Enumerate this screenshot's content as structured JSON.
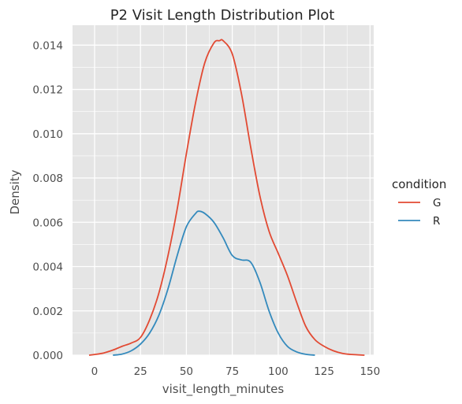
{
  "chart_data": {
    "type": "line",
    "title": "P2 Visit Length Distribution Plot",
    "xlabel": "visit_length_minutes",
    "ylabel": "Density",
    "xlim": [
      -12,
      152
    ],
    "ylim": [
      0,
      0.0149
    ],
    "xticks": [
      0,
      25,
      50,
      75,
      100,
      125,
      150
    ],
    "xtick_labels": [
      "0",
      "25",
      "50",
      "75",
      "100",
      "125",
      "150"
    ],
    "yticks": [
      0,
      0.002,
      0.004,
      0.006,
      0.008,
      0.01,
      0.012,
      0.014
    ],
    "ytick_labels": [
      "0.000",
      "0.002",
      "0.004",
      "0.006",
      "0.008",
      "0.010",
      "0.012",
      "0.014"
    ],
    "grid": true,
    "background": "#e5e5e5",
    "legend": {
      "title": "condition",
      "placement": "right"
    },
    "series": [
      {
        "name": "G",
        "color": "#e24a33",
        "x": [
          -3,
          0,
          5,
          10,
          15,
          20,
          25,
          30,
          35,
          40,
          45,
          50,
          55,
          60,
          65,
          68,
          70,
          75,
          80,
          85,
          90,
          95,
          100,
          105,
          110,
          115,
          120,
          125,
          130,
          135,
          140,
          147
        ],
        "y": [
          0.0,
          3e-05,
          0.0001,
          0.00023,
          0.0004,
          0.00055,
          0.0008,
          0.0016,
          0.0028,
          0.0045,
          0.0066,
          0.0091,
          0.0114,
          0.0132,
          0.0141,
          0.0142,
          0.0142,
          0.0136,
          0.0118,
          0.0094,
          0.0072,
          0.0056,
          0.0046,
          0.0036,
          0.0024,
          0.0013,
          0.0007,
          0.0004,
          0.0002,
          8e-05,
          3e-05,
          0.0
        ]
      },
      {
        "name": "R",
        "color": "#348abd",
        "x": [
          10,
          15,
          20,
          25,
          30,
          35,
          40,
          45,
          50,
          55,
          57,
          60,
          65,
          70,
          75,
          80,
          85,
          90,
          95,
          100,
          105,
          110,
          115,
          120
        ],
        "y": [
          0.0,
          5e-05,
          0.0002,
          0.0005,
          0.001,
          0.0018,
          0.003,
          0.0045,
          0.0058,
          0.0064,
          0.0065,
          0.0064,
          0.006,
          0.0053,
          0.0045,
          0.0043,
          0.0042,
          0.0033,
          0.002,
          0.001,
          0.0004,
          0.00015,
          4e-05,
          0.0
        ]
      }
    ]
  }
}
